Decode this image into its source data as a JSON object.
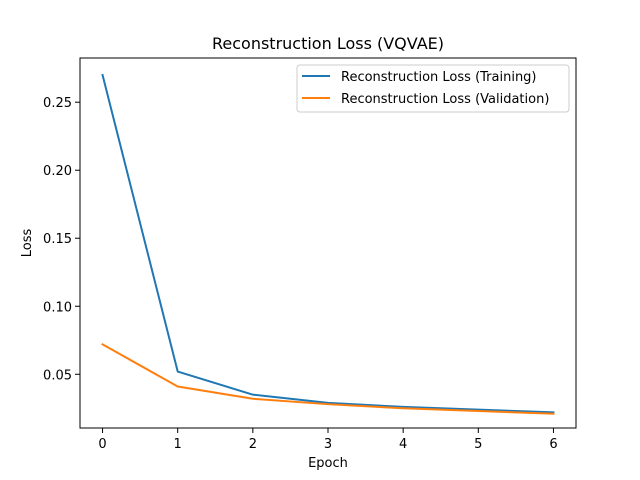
{
  "chart_data": {
    "type": "line",
    "title": "Reconstruction Loss (VQVAE)",
    "xlabel": "Epoch",
    "ylabel": "Loss",
    "x": [
      0,
      1,
      2,
      3,
      4,
      5,
      6
    ],
    "xlim": [
      -0.3,
      6.3
    ],
    "ylim": [
      0.0105,
      0.2825
    ],
    "xticks": [
      "0",
      "1",
      "2",
      "3",
      "4",
      "5",
      "6"
    ],
    "yticks": [
      "0.05",
      "0.10",
      "0.15",
      "0.20",
      "0.25"
    ],
    "grid": false,
    "legend_position": "top-right",
    "series": [
      {
        "name": "Reconstruction Loss (Training)",
        "color": "#1f77b4",
        "values": [
          0.27,
          0.052,
          0.035,
          0.029,
          0.026,
          0.024,
          0.022
        ]
      },
      {
        "name": "Reconstruction Loss (Validation)",
        "color": "#ff7f0e",
        "values": [
          0.072,
          0.041,
          0.032,
          0.028,
          0.025,
          0.023,
          0.021
        ]
      }
    ]
  }
}
